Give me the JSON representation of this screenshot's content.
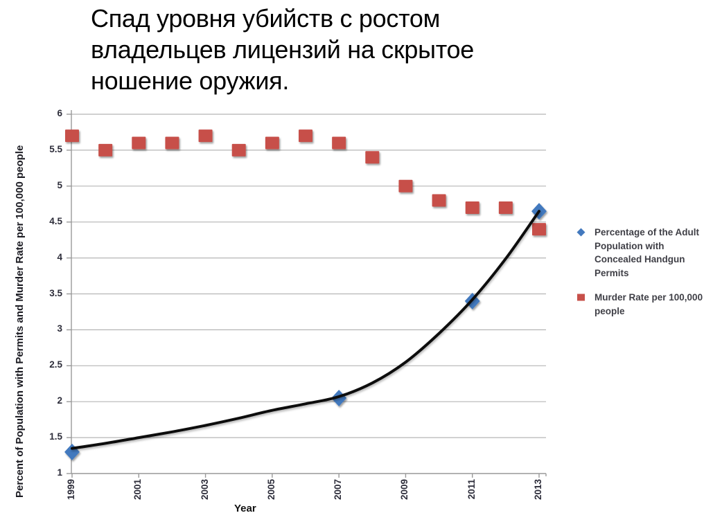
{
  "title": {
    "lines": [
      "Спад уровня убийств с ростом",
      "владельцев лицензий на скрытое",
      "ношение оружия."
    ]
  },
  "chart_data": {
    "type": "scatter",
    "xlabel": "Year",
    "ylabel": "Percent of Population with Permits and Murder Rate per 100,000 people",
    "xlim": [
      1999,
      2013
    ],
    "ylim": [
      1,
      6
    ],
    "xticks": [
      1999,
      2001,
      2003,
      2005,
      2007,
      2009,
      2011,
      2013
    ],
    "yticks": [
      6,
      5.5,
      5,
      4.5,
      4,
      3.5,
      3,
      2.5,
      2,
      1.5,
      1
    ],
    "grid": true,
    "legend_position": "right",
    "series": [
      {
        "name": "Percentage of the Adult Population with Concealed Handgun Permits",
        "legend_lines": [
          "Percentage of the Adult",
          "Population with",
          "Concealed Handgun",
          "Permits"
        ],
        "marker": "diamond",
        "color": "#4379BE",
        "x": [
          1999,
          2007,
          2011,
          2013
        ],
        "y": [
          1.3,
          2.05,
          3.4,
          4.65
        ]
      },
      {
        "name": "Murder Rate per 100,000 people",
        "legend_lines": [
          "Murder Rate per 100,000",
          "people"
        ],
        "marker": "square",
        "color": "#C7504A",
        "x": [
          1999,
          2000,
          2001,
          2002,
          2003,
          2004,
          2005,
          2006,
          2007,
          2008,
          2009,
          2010,
          2011,
          2012,
          2013
        ],
        "y": [
          5.7,
          5.5,
          5.6,
          5.6,
          5.7,
          5.5,
          5.6,
          5.7,
          5.6,
          5.4,
          5.0,
          4.8,
          4.7,
          4.7,
          4.4
        ]
      }
    ],
    "trendline": {
      "for_series": "Percentage of the Adult Population with Concealed Handgun Permits",
      "color": "#111111",
      "x": [
        1999,
        2000,
        2001,
        2002,
        2003,
        2004,
        2005,
        2006,
        2007,
        2008,
        2009,
        2010,
        2011,
        2012,
        2013
      ],
      "y": [
        1.35,
        1.42,
        1.5,
        1.58,
        1.67,
        1.77,
        1.88,
        1.97,
        2.07,
        2.26,
        2.55,
        2.95,
        3.42,
        3.99,
        4.65
      ]
    }
  },
  "colors": {
    "grid": "#b5b5b5",
    "axis": "#999999",
    "tick_text": "#2d2d3a",
    "legend_text": "#3f3f46",
    "title_text": "#000000"
  }
}
